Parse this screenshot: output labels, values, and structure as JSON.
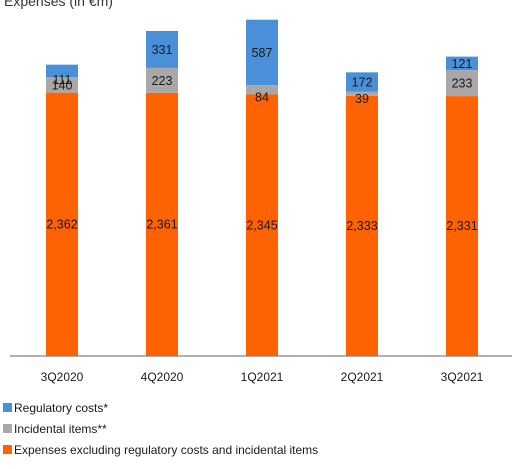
{
  "chart_data": {
    "type": "bar",
    "stacked": true,
    "title": "Expenses (in €m)",
    "categories": [
      "3Q2020",
      "4Q2020",
      "1Q2021",
      "2Q2021",
      "3Q2021"
    ],
    "series": [
      {
        "name": "Expenses excluding regulatory costs and incidental items",
        "color": "#ff6200",
        "values": [
          2362,
          2361,
          2345,
          2333,
          2331
        ],
        "labels": [
          "2,362",
          "2,361",
          "2,345",
          "2,333",
          "2,331"
        ]
      },
      {
        "name": "Incidental items**",
        "color": "#a8a8a8",
        "values": [
          140,
          223,
          84,
          39,
          233
        ],
        "labels": [
          "140",
          "223",
          "84",
          "39",
          "233"
        ]
      },
      {
        "name": "Regulatory costs*",
        "color": "#4a90d9",
        "values": [
          111,
          331,
          587,
          172,
          121
        ],
        "labels": [
          "111",
          "331",
          "587",
          "172",
          "121"
        ]
      }
    ],
    "legend_position": "bottom-left",
    "grid": false
  }
}
